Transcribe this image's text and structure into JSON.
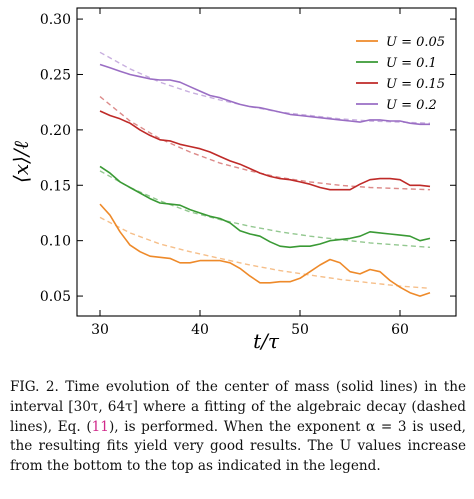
{
  "chart_data": {
    "type": "line",
    "xlabel": "t/τ",
    "ylabel": "⟨x⟩/ℓ",
    "xlim": [
      27.7,
      65.6
    ],
    "ylim": [
      0.032,
      0.31
    ],
    "xticks": [
      30,
      40,
      50,
      60
    ],
    "yticks": [
      0.05,
      0.1,
      0.15,
      0.2,
      0.25,
      0.3
    ],
    "ytick_labels": [
      "0.05",
      "0.10",
      "0.15",
      "0.20",
      "0.25",
      "0.30"
    ],
    "legend_position": "top-right",
    "grid": false,
    "series": [
      {
        "name": "U = 0.05",
        "color": "#ee8a2a",
        "solid": [
          [
            30,
            0.133
          ],
          [
            31,
            0.123
          ],
          [
            32,
            0.108
          ],
          [
            33,
            0.096
          ],
          [
            34,
            0.09
          ],
          [
            35,
            0.086
          ],
          [
            36,
            0.085
          ],
          [
            37,
            0.084
          ],
          [
            38,
            0.08
          ],
          [
            39,
            0.08
          ],
          [
            40,
            0.082
          ],
          [
            41,
            0.082
          ],
          [
            42,
            0.082
          ],
          [
            43,
            0.08
          ],
          [
            44,
            0.075
          ],
          [
            45,
            0.068
          ],
          [
            46,
            0.062
          ],
          [
            47,
            0.062
          ],
          [
            48,
            0.063
          ],
          [
            49,
            0.063
          ],
          [
            50,
            0.066
          ],
          [
            51,
            0.072
          ],
          [
            52,
            0.078
          ],
          [
            53,
            0.083
          ],
          [
            54,
            0.08
          ],
          [
            55,
            0.072
          ],
          [
            56,
            0.07
          ],
          [
            57,
            0.074
          ],
          [
            58,
            0.072
          ],
          [
            59,
            0.064
          ],
          [
            60,
            0.058
          ],
          [
            61,
            0.053
          ],
          [
            62,
            0.05
          ],
          [
            63,
            0.053
          ]
        ],
        "fit": [
          [
            30,
            0.121
          ],
          [
            33,
            0.107
          ],
          [
            36,
            0.097
          ],
          [
            39,
            0.09
          ],
          [
            42,
            0.084
          ],
          [
            45,
            0.078
          ],
          [
            48,
            0.073
          ],
          [
            51,
            0.069
          ],
          [
            54,
            0.065
          ],
          [
            57,
            0.062
          ],
          [
            60,
            0.059
          ],
          [
            63,
            0.057
          ]
        ]
      },
      {
        "name": "U = 0.1",
        "color": "#3a9a35",
        "solid": [
          [
            30,
            0.167
          ],
          [
            31,
            0.161
          ],
          [
            32,
            0.153
          ],
          [
            33,
            0.148
          ],
          [
            34,
            0.143
          ],
          [
            35,
            0.138
          ],
          [
            36,
            0.134
          ],
          [
            37,
            0.133
          ],
          [
            38,
            0.132
          ],
          [
            39,
            0.128
          ],
          [
            40,
            0.125
          ],
          [
            41,
            0.122
          ],
          [
            42,
            0.12
          ],
          [
            43,
            0.116
          ],
          [
            44,
            0.109
          ],
          [
            45,
            0.106
          ],
          [
            46,
            0.104
          ],
          [
            47,
            0.099
          ],
          [
            48,
            0.095
          ],
          [
            49,
            0.094
          ],
          [
            50,
            0.095
          ],
          [
            51,
            0.095
          ],
          [
            52,
            0.097
          ],
          [
            53,
            0.1
          ],
          [
            54,
            0.101
          ],
          [
            55,
            0.102
          ],
          [
            56,
            0.104
          ],
          [
            57,
            0.108
          ],
          [
            58,
            0.107
          ],
          [
            59,
            0.106
          ],
          [
            60,
            0.105
          ],
          [
            61,
            0.104
          ],
          [
            62,
            0.1
          ],
          [
            63,
            0.102
          ]
        ],
        "fit": [
          [
            30,
            0.163
          ],
          [
            33,
            0.148
          ],
          [
            36,
            0.136
          ],
          [
            39,
            0.126
          ],
          [
            42,
            0.119
          ],
          [
            45,
            0.113
          ],
          [
            48,
            0.108
          ],
          [
            51,
            0.104
          ],
          [
            54,
            0.101
          ],
          [
            57,
            0.098
          ],
          [
            60,
            0.096
          ],
          [
            63,
            0.094
          ]
        ]
      },
      {
        "name": "U = 0.15",
        "color": "#bf2a28",
        "solid": [
          [
            30,
            0.217
          ],
          [
            31,
            0.213
          ],
          [
            32,
            0.21
          ],
          [
            33,
            0.206
          ],
          [
            34,
            0.2
          ],
          [
            35,
            0.195
          ],
          [
            36,
            0.191
          ],
          [
            37,
            0.19
          ],
          [
            38,
            0.187
          ],
          [
            39,
            0.185
          ],
          [
            40,
            0.183
          ],
          [
            41,
            0.18
          ],
          [
            42,
            0.176
          ],
          [
            43,
            0.172
          ],
          [
            44,
            0.169
          ],
          [
            45,
            0.165
          ],
          [
            46,
            0.161
          ],
          [
            47,
            0.158
          ],
          [
            48,
            0.156
          ],
          [
            49,
            0.155
          ],
          [
            50,
            0.153
          ],
          [
            51,
            0.151
          ],
          [
            52,
            0.148
          ],
          [
            53,
            0.146
          ],
          [
            54,
            0.146
          ],
          [
            55,
            0.146
          ],
          [
            56,
            0.151
          ],
          [
            57,
            0.155
          ],
          [
            58,
            0.156
          ],
          [
            59,
            0.156
          ],
          [
            60,
            0.155
          ],
          [
            61,
            0.15
          ],
          [
            62,
            0.15
          ],
          [
            63,
            0.149
          ]
        ],
        "fit": [
          [
            30,
            0.23
          ],
          [
            33,
            0.208
          ],
          [
            36,
            0.192
          ],
          [
            39,
            0.18
          ],
          [
            42,
            0.17
          ],
          [
            45,
            0.163
          ],
          [
            48,
            0.157
          ],
          [
            51,
            0.153
          ],
          [
            54,
            0.15
          ],
          [
            57,
            0.148
          ],
          [
            60,
            0.147
          ],
          [
            63,
            0.146
          ]
        ]
      },
      {
        "name": "U = 0.2",
        "color": "#9a6ec4",
        "solid": [
          [
            30,
            0.259
          ],
          [
            31,
            0.256
          ],
          [
            32,
            0.253
          ],
          [
            33,
            0.25
          ],
          [
            34,
            0.248
          ],
          [
            35,
            0.246
          ],
          [
            36,
            0.245
          ],
          [
            37,
            0.245
          ],
          [
            38,
            0.243
          ],
          [
            39,
            0.239
          ],
          [
            40,
            0.235
          ],
          [
            41,
            0.231
          ],
          [
            42,
            0.229
          ],
          [
            43,
            0.226
          ],
          [
            44,
            0.223
          ],
          [
            45,
            0.221
          ],
          [
            46,
            0.22
          ],
          [
            47,
            0.218
          ],
          [
            48,
            0.216
          ],
          [
            49,
            0.214
          ],
          [
            50,
            0.213
          ],
          [
            51,
            0.212
          ],
          [
            52,
            0.211
          ],
          [
            53,
            0.21
          ],
          [
            54,
            0.209
          ],
          [
            55,
            0.208
          ],
          [
            56,
            0.207
          ],
          [
            57,
            0.209
          ],
          [
            58,
            0.209
          ],
          [
            59,
            0.208
          ],
          [
            60,
            0.208
          ],
          [
            61,
            0.206
          ],
          [
            62,
            0.205
          ],
          [
            63,
            0.205
          ]
        ],
        "fit": [
          [
            30,
            0.27
          ],
          [
            33,
            0.255
          ],
          [
            36,
            0.243
          ],
          [
            39,
            0.234
          ],
          [
            42,
            0.227
          ],
          [
            45,
            0.221
          ],
          [
            48,
            0.216
          ],
          [
            51,
            0.213
          ],
          [
            54,
            0.21
          ],
          [
            57,
            0.208
          ],
          [
            60,
            0.207
          ],
          [
            63,
            0.206
          ]
        ]
      }
    ]
  },
  "caption": {
    "text": "FIG. 2. Time evolution of the center of mass (solid lines) in the interval [30τ, 64τ] where a fitting of the algebraic decay (dashed lines), Eq. (",
    "ref": "11",
    "text_after": "), is performed. When the exponent α = 3 is used, the resulting fits yield very good results. The U values increase from the bottom to the top as indicated in the legend."
  }
}
